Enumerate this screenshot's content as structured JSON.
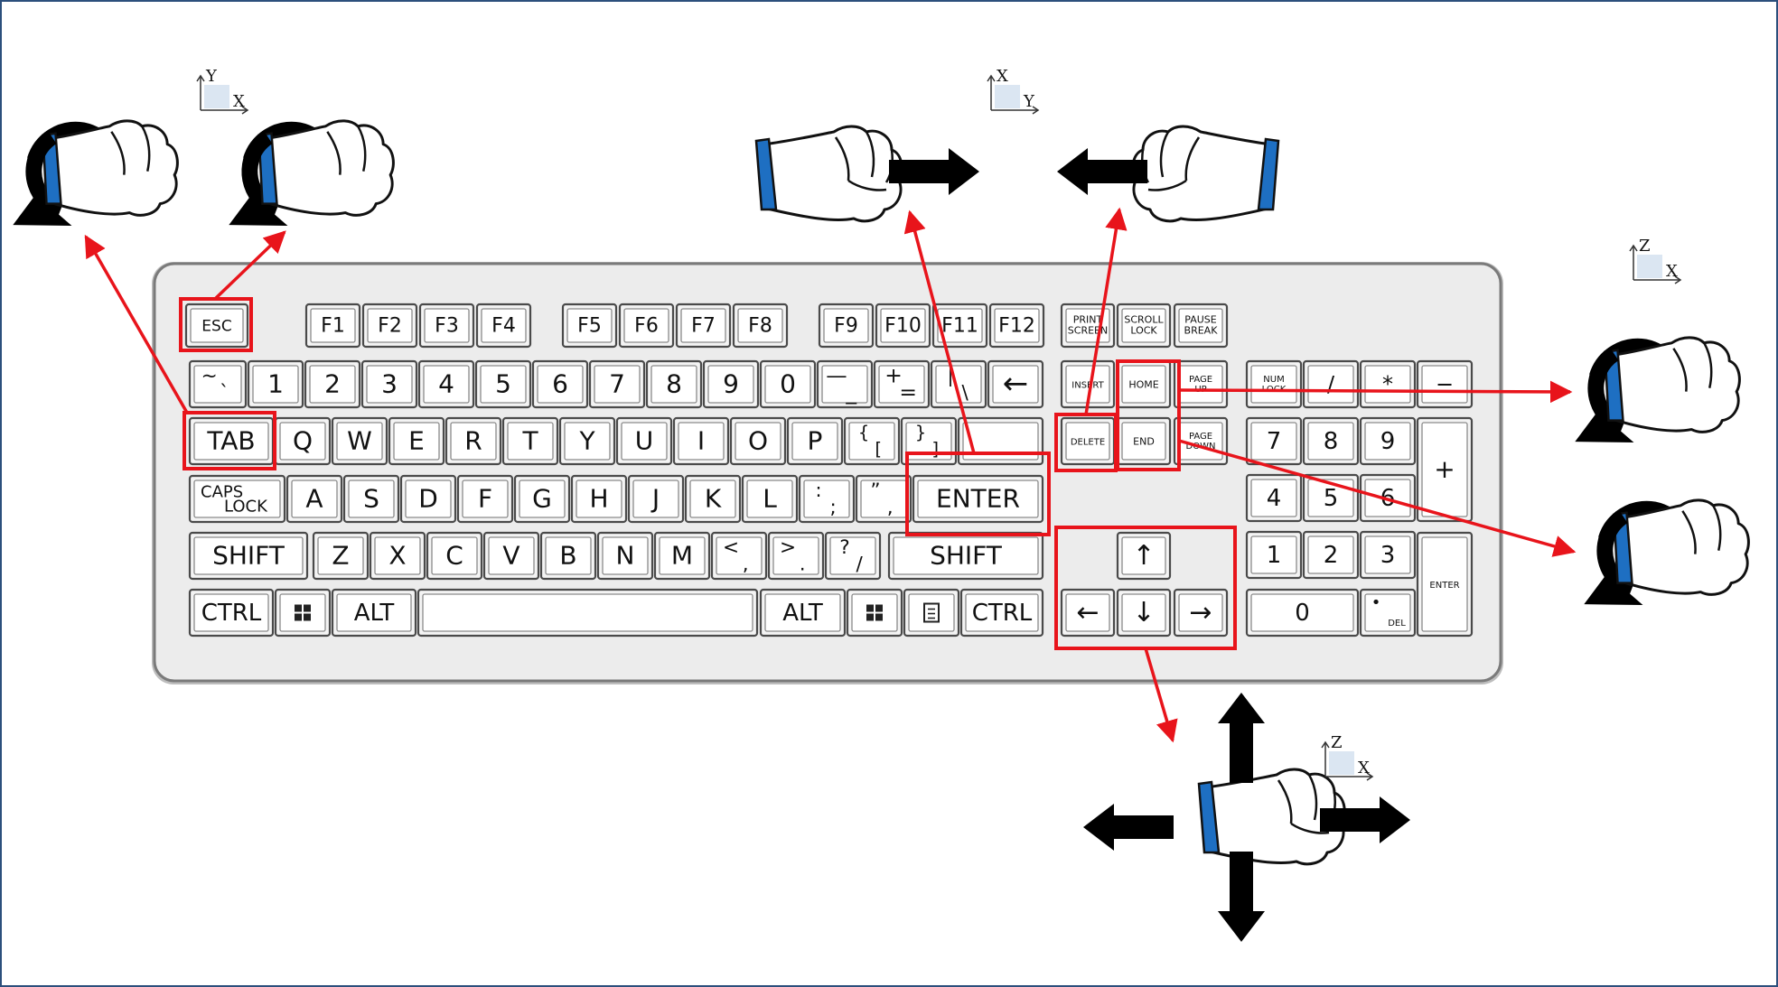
{
  "colors": {
    "highlight": "#e8141b",
    "key_border": "#4a4a4a",
    "key_fill": "#f4f4f4",
    "keyboard_fill": "#ececec",
    "wristband": "#1e6fc2",
    "arrow": "#000000"
  },
  "keyboard": {
    "function_row": [
      "ESC",
      "F1",
      "F2",
      "F3",
      "F4",
      "F5",
      "F6",
      "F7",
      "F8",
      "F9",
      "F10",
      "F11",
      "F12"
    ],
    "system_keys": [
      [
        "PRINT",
        "SCREEN"
      ],
      [
        "SCROLL",
        "LOCK"
      ],
      [
        "PAUSE",
        "BREAK"
      ]
    ],
    "number_row": [
      "1",
      "2",
      "3",
      "4",
      "5",
      "6",
      "7",
      "8",
      "9",
      "0"
    ],
    "symbol_keys": {
      "backquote": [
        "~",
        "`"
      ],
      "minus": [
        "—",
        "_"
      ],
      "equals": [
        "+",
        "="
      ],
      "pipe": [
        "|",
        "\\"
      ],
      "brace_l": [
        "{",
        "["
      ],
      "brace_r": [
        "}",
        "]"
      ],
      "colon": [
        ":",
        ";"
      ],
      "quote": [
        "”",
        ","
      ],
      "less": [
        "<",
        ","
      ],
      "greater": [
        ">",
        "."
      ],
      "question": [
        "?",
        "/"
      ]
    },
    "row_q": [
      "Q",
      "W",
      "E",
      "R",
      "T",
      "Y",
      "U",
      "I",
      "O",
      "P"
    ],
    "row_a": [
      "A",
      "S",
      "D",
      "F",
      "G",
      "H",
      "J",
      "K",
      "L"
    ],
    "row_z": [
      "Z",
      "X",
      "C",
      "V",
      "B",
      "N",
      "M"
    ],
    "tab": "TAB",
    "caps": [
      "CAPS",
      "LOCK"
    ],
    "shift": "SHIFT",
    "enter": "ENTER",
    "ctrl": "CTRL",
    "alt": "ALT",
    "backspace": "←",
    "nav_keys": {
      "insert": "INSERT",
      "home": "HOME",
      "page_up": [
        "PAGE",
        "UP"
      ],
      "delete": "DELETE",
      "end": "END",
      "page_down": [
        "PAGE",
        "DOWN"
      ]
    },
    "arrow_keys": {
      "up": "↑",
      "left": "←",
      "down": "↓",
      "right": "→"
    },
    "numpad": {
      "num_lock": [
        "NUM",
        "LOCK"
      ],
      "divide": "/",
      "multiply": "*",
      "minus": "−",
      "plus": "+",
      "digits": [
        "7",
        "8",
        "9",
        "4",
        "5",
        "6",
        "1",
        "2",
        "3"
      ],
      "zero": "0",
      "dot": "•",
      "del": "DEL",
      "enter": "ENTER"
    }
  },
  "axes": {
    "esc_tab": [
      "Y",
      "X"
    ],
    "enter_delete": [
      "X",
      "Y"
    ],
    "home_end": [
      "Z",
      "X"
    ],
    "arrows": [
      "Z",
      "X"
    ]
  },
  "icons": {
    "rotate": "circular-arrow-icon",
    "fist": "fist-icon",
    "direction": "block-arrow-icon"
  }
}
